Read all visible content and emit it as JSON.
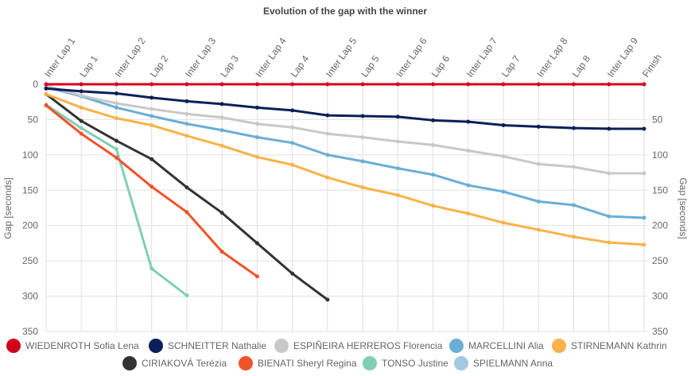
{
  "chart_data": {
    "type": "line",
    "title": "Evolution of the gap with the winner",
    "y_label": "Gap [seconds]",
    "y2_label": "Gap [seconds]",
    "y_inverted": true,
    "grid": true,
    "categories": [
      "Inter Lap 1",
      "Lap 1",
      "Inter Lap 2",
      "Lap 2",
      "Inter Lap 3",
      "Lap 3",
      "Inter Lap 4",
      "Lap 4",
      "Inter Lap 5",
      "Lap 5",
      "Inter Lap 6",
      "Lap 6",
      "Inter Lap 7",
      "Lap 7",
      "Inter Lap 8",
      "Lap 8",
      "Inter Lap 9",
      "Finish"
    ],
    "ylim": [
      0,
      350
    ],
    "yticks": [
      0,
      50,
      100,
      150,
      200,
      250,
      300,
      350
    ],
    "y2lim": [
      0,
      350
    ],
    "y2ticks": [
      50,
      100,
      150,
      200,
      250,
      300,
      350
    ],
    "series": [
      {
        "name": "WIEDENROTH Sofia Lena",
        "color": "#d0021b",
        "values": [
          0,
          0,
          0,
          0,
          0,
          0,
          0,
          0,
          0,
          0,
          0,
          0,
          0,
          0,
          0,
          0,
          0,
          0
        ]
      },
      {
        "name": "SCHNEITTER Nathalie",
        "color": "#0c1f5a",
        "values": [
          6,
          10,
          13,
          19,
          24,
          28,
          33,
          37,
          44,
          45,
          46,
          51,
          53,
          58,
          60,
          62,
          63,
          63
        ]
      },
      {
        "name": "ESPIÑEIRA HERREROS Florencia",
        "color": "#c8c8c8",
        "values": [
          2,
          16,
          27,
          35,
          42,
          47,
          56,
          61,
          70,
          75,
          81,
          86,
          94,
          102,
          113,
          117,
          126,
          126
        ]
      },
      {
        "name": "MARCELLINI Alia",
        "color": "#6aaed6",
        "values": [
          4,
          17,
          33,
          45,
          56,
          65,
          75,
          83,
          100,
          109,
          119,
          128,
          143,
          152,
          166,
          171,
          187,
          189
        ]
      },
      {
        "name": "STIRNEMANN Kathrin",
        "color": "#f8b24a",
        "values": [
          14,
          33,
          48,
          58,
          73,
          87,
          103,
          114,
          132,
          146,
          157,
          172,
          183,
          196,
          206,
          216,
          224,
          227
        ]
      },
      {
        "name": "CIRIAKOVÁ Terézia",
        "color": "#333333",
        "values": [
          14,
          52,
          80,
          106,
          146,
          182,
          225,
          268,
          305,
          null,
          null,
          null,
          null,
          null,
          null,
          null,
          null,
          null
        ]
      },
      {
        "name": "BIENATI Sheryl Regina",
        "color": "#f0522a",
        "values": [
          30,
          70,
          104,
          145,
          181,
          237,
          272,
          null,
          null,
          null,
          null,
          null,
          null,
          null,
          null,
          null,
          null,
          null
        ]
      },
      {
        "name": "TONSO Justine",
        "color": "#80ceb6",
        "values": [
          29,
          62,
          92,
          261,
          299,
          null,
          null,
          null,
          null,
          null,
          null,
          null,
          null,
          null,
          null,
          null,
          null,
          null
        ]
      },
      {
        "name": "SPIELMANN Anna",
        "color": "#a2c8e2",
        "values": [
          null,
          null,
          null,
          null,
          null,
          null,
          null,
          null,
          null,
          null,
          null,
          null,
          null,
          null,
          null,
          null,
          null,
          null
        ]
      }
    ]
  }
}
